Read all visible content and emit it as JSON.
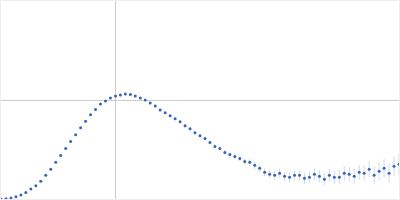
{
  "chart_data": {
    "type": "scatter",
    "color": "#3a64b8",
    "marker": "circle",
    "grid": true,
    "tick_labels": false,
    "xlim": [
      0,
      400
    ],
    "ylim": [
      0,
      200
    ],
    "xticks": [
      115
    ],
    "yticks": [
      100
    ],
    "x": [
      0,
      5,
      10,
      15,
      20,
      25,
      30,
      35,
      40,
      45,
      50,
      55,
      60,
      65,
      70,
      75,
      80,
      85,
      90,
      95,
      100,
      105,
      110,
      115,
      120,
      125,
      130,
      135,
      140,
      145,
      150,
      155,
      160,
      165,
      170,
      175,
      180,
      185,
      190,
      195,
      200,
      205,
      210,
      215,
      220,
      225,
      230,
      235,
      240,
      245,
      250,
      255,
      260,
      265,
      270,
      275,
      280,
      285,
      290,
      295,
      300,
      305,
      310,
      315,
      320,
      325,
      330,
      335,
      340,
      345,
      350,
      355,
      360,
      365,
      370,
      375,
      380,
      385,
      390,
      395,
      400
    ],
    "values": [
      0,
      0.3,
      1,
      2.2,
      4,
      6.5,
      10,
      13.5,
      18,
      24,
      30,
      37,
      44,
      51,
      58,
      65,
      72,
      78.5,
      85,
      90.5,
      96,
      99,
      102,
      104,
      105,
      106,
      105.5,
      104,
      102,
      100,
      97,
      94,
      90,
      87,
      84,
      81,
      78,
      74,
      71,
      67,
      64,
      61,
      57,
      53,
      51,
      47,
      45,
      43,
      41,
      38,
      37,
      34,
      31,
      27,
      25,
      24,
      26,
      23,
      22,
      24,
      24,
      21,
      22,
      25,
      23,
      20,
      24,
      22,
      22,
      26,
      25,
      23,
      27,
      26,
      30,
      24,
      28,
      31,
      26,
      33,
      35
    ],
    "error": [
      0.3,
      0.3,
      0.3,
      0.3,
      0.3,
      0.3,
      0.3,
      0.3,
      0.3,
      0.3,
      0.3,
      0.3,
      0.3,
      0.3,
      0.3,
      0.3,
      0.3,
      0.3,
      0.3,
      0.3,
      0.6,
      0.6,
      0.7,
      0.7,
      0.8,
      0.8,
      0.9,
      0.9,
      1,
      1,
      1.2,
      1.2,
      1.3,
      1.4,
      1.5,
      1.5,
      1.6,
      1.7,
      1.8,
      1.9,
      2,
      2.1,
      2.2,
      2.3,
      2.4,
      2.5,
      2.6,
      2.8,
      3,
      3.2,
      3.4,
      3.6,
      3.8,
      4,
      4.2,
      4.4,
      4.6,
      4.8,
      5,
      5.2,
      5.4,
      5.6,
      5.8,
      6,
      6.2,
      6.4,
      6.6,
      6.8,
      7,
      7.2,
      7.4,
      7.6,
      7.8,
      8,
      8.3,
      8.6,
      9,
      9.3,
      9.6,
      10,
      10.5
    ]
  }
}
